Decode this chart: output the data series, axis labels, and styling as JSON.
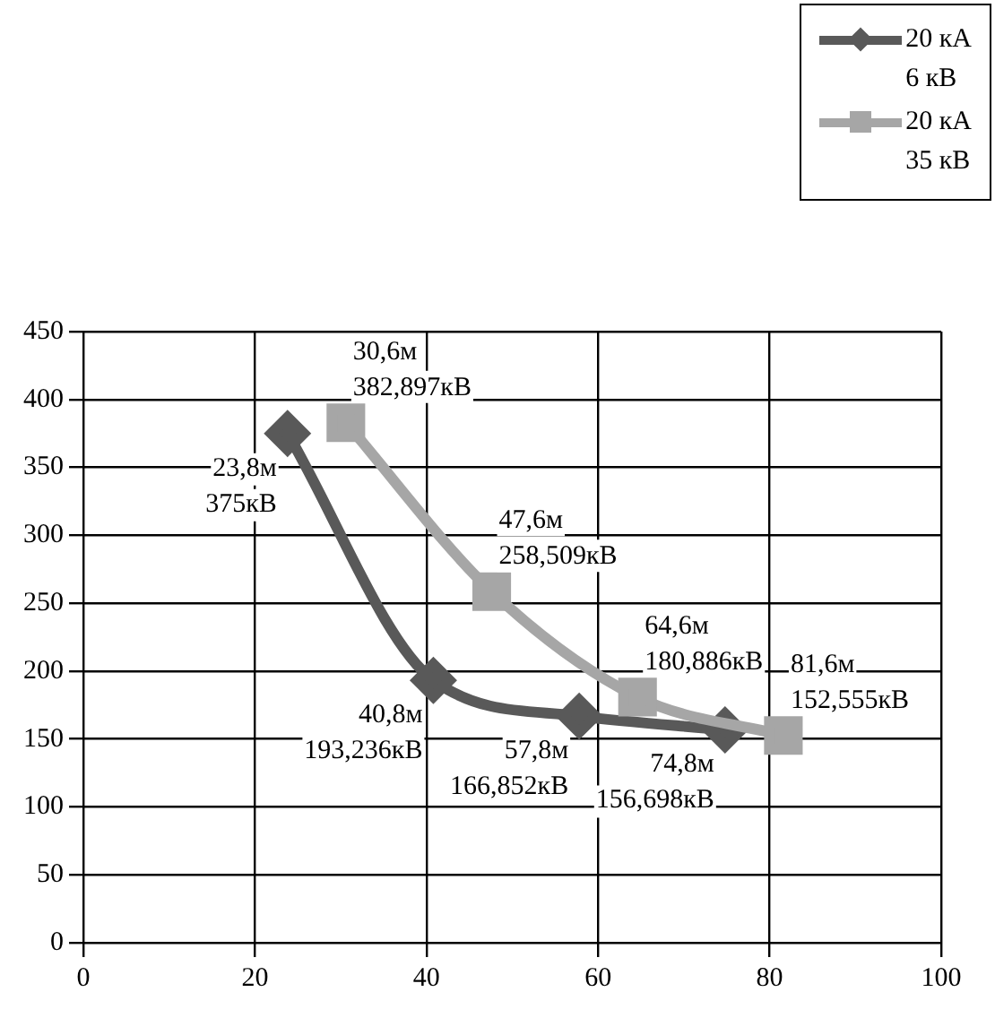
{
  "chart_data": {
    "type": "line",
    "legend": "top right",
    "grid": true,
    "line_style": "solid",
    "xlim": [
      0,
      100
    ],
    "xticks": [
      0,
      20,
      40,
      60,
      80,
      100
    ],
    "ylim": [
      0,
      450
    ],
    "yticks": [
      0,
      50,
      100,
      150,
      200,
      250,
      300,
      350,
      400,
      450
    ],
    "series": [
      {
        "name": "20 кА\n6 кВ",
        "color": "#595959",
        "marker": "diamond",
        "x": [
          23.8,
          40.8,
          57.8,
          74.8
        ],
        "values": [
          375,
          193.236,
          166.852,
          156.698
        ]
      },
      {
        "name": "20 кА\n35 кВ",
        "color": "#a6a6a6",
        "marker": "square",
        "x": [
          30.6,
          47.6,
          64.6,
          81.6
        ],
        "values": [
          382.897,
          258.509,
          180.886,
          152.555
        ]
      }
    ],
    "annotations": [
      {
        "text": "23,8м\n375кВ",
        "x": 23.8,
        "y": 375
      },
      {
        "text": "40,8м\n193,236кВ",
        "x": 40.8,
        "y": 193.236
      },
      {
        "text": "57,8м\n166,852кВ",
        "x": 57.8,
        "y": 166.852
      },
      {
        "text": "74,8м\n156,698кВ",
        "x": 74.8,
        "y": 156.698
      },
      {
        "text": "30,6м\n382,897кВ",
        "x": 30.6,
        "y": 382.897
      },
      {
        "text": "47,6м\n258,509кВ",
        "x": 47.6,
        "y": 258.509
      },
      {
        "text": "64,6м\n180,886кВ",
        "x": 64.6,
        "y": 180.886
      },
      {
        "text": "81,6м\n152,555кВ",
        "x": 81.6,
        "y": 152.555
      }
    ]
  }
}
